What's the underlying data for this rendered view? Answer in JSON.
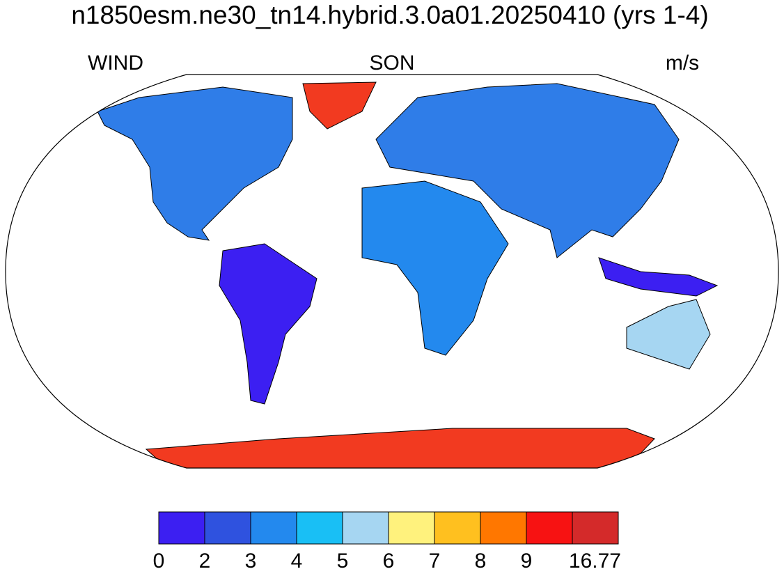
{
  "title": "n1850esm.ne30_tn14.hybrid.3.0a01.20250410 (yrs 1-4)",
  "labels": {
    "left": "WIND",
    "center": "SON",
    "right": "m/s"
  },
  "colorbar": {
    "colors": [
      "#3c1ff2",
      "#2f52df",
      "#2389ee",
      "#19bff5",
      "#a6d6f2",
      "#fff27d",
      "#ffc01f",
      "#ff7700",
      "#f71212",
      "#d42a2a"
    ],
    "bounds": [
      0,
      2,
      3,
      4,
      5,
      6,
      7,
      8,
      9,
      null,
      16.77
    ]
  }
}
